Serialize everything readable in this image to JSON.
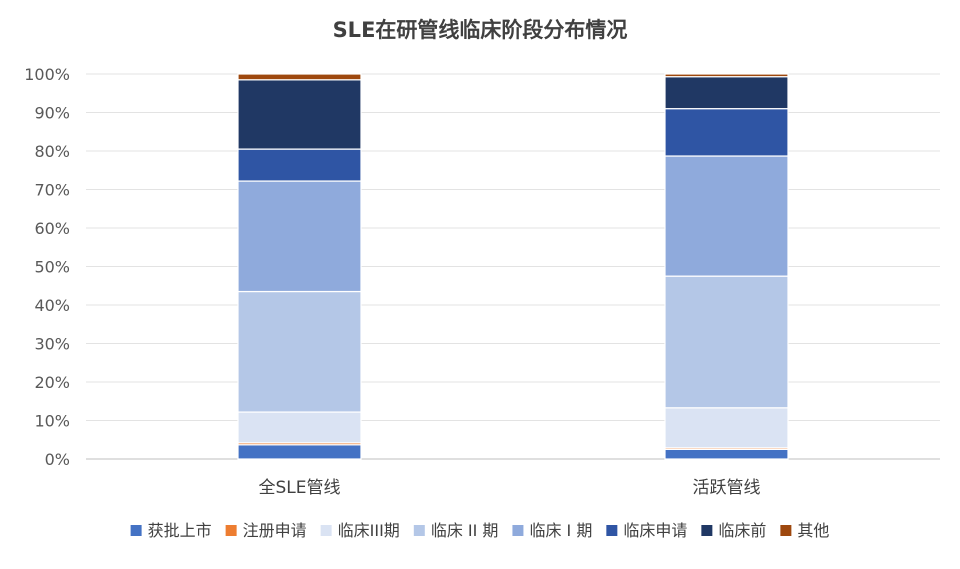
{
  "chart_data": {
    "type": "bar",
    "stacked": true,
    "title": "SLE在研管线临床阶段分布情况",
    "xlabel": "",
    "ylabel": "",
    "ylim": [
      0,
      100
    ],
    "yticks": [
      "0%",
      "10%",
      "20%",
      "30%",
      "40%",
      "50%",
      "60%",
      "70%",
      "80%",
      "90%",
      "100%"
    ],
    "categories": [
      "全SLE管线",
      "活跃管线"
    ],
    "series": [
      {
        "name": "获批上市",
        "color": "#4472C4",
        "values": [
          3.7,
          2.5
        ]
      },
      {
        "name": "注册申请",
        "color": "#ED7D31",
        "values": [
          0.5,
          0.4
        ]
      },
      {
        "name": "临床III期",
        "color": "#DAE3F3",
        "values": [
          8.0,
          10.4
        ]
      },
      {
        "name": "临床 II 期",
        "color": "#B4C7E7",
        "values": [
          31.3,
          34.2
        ]
      },
      {
        "name": "临床 I 期",
        "color": "#8FAADC",
        "values": [
          28.7,
          31.2
        ]
      },
      {
        "name": "临床申请",
        "color": "#2F55A4",
        "values": [
          8.3,
          12.3
        ]
      },
      {
        "name": "临床前",
        "color": "#203864",
        "values": [
          18.0,
          8.3
        ]
      },
      {
        "name": "其他",
        "color": "#9E480E",
        "values": [
          1.5,
          0.7
        ]
      }
    ],
    "grid": true,
    "legend_position": "bottom"
  }
}
